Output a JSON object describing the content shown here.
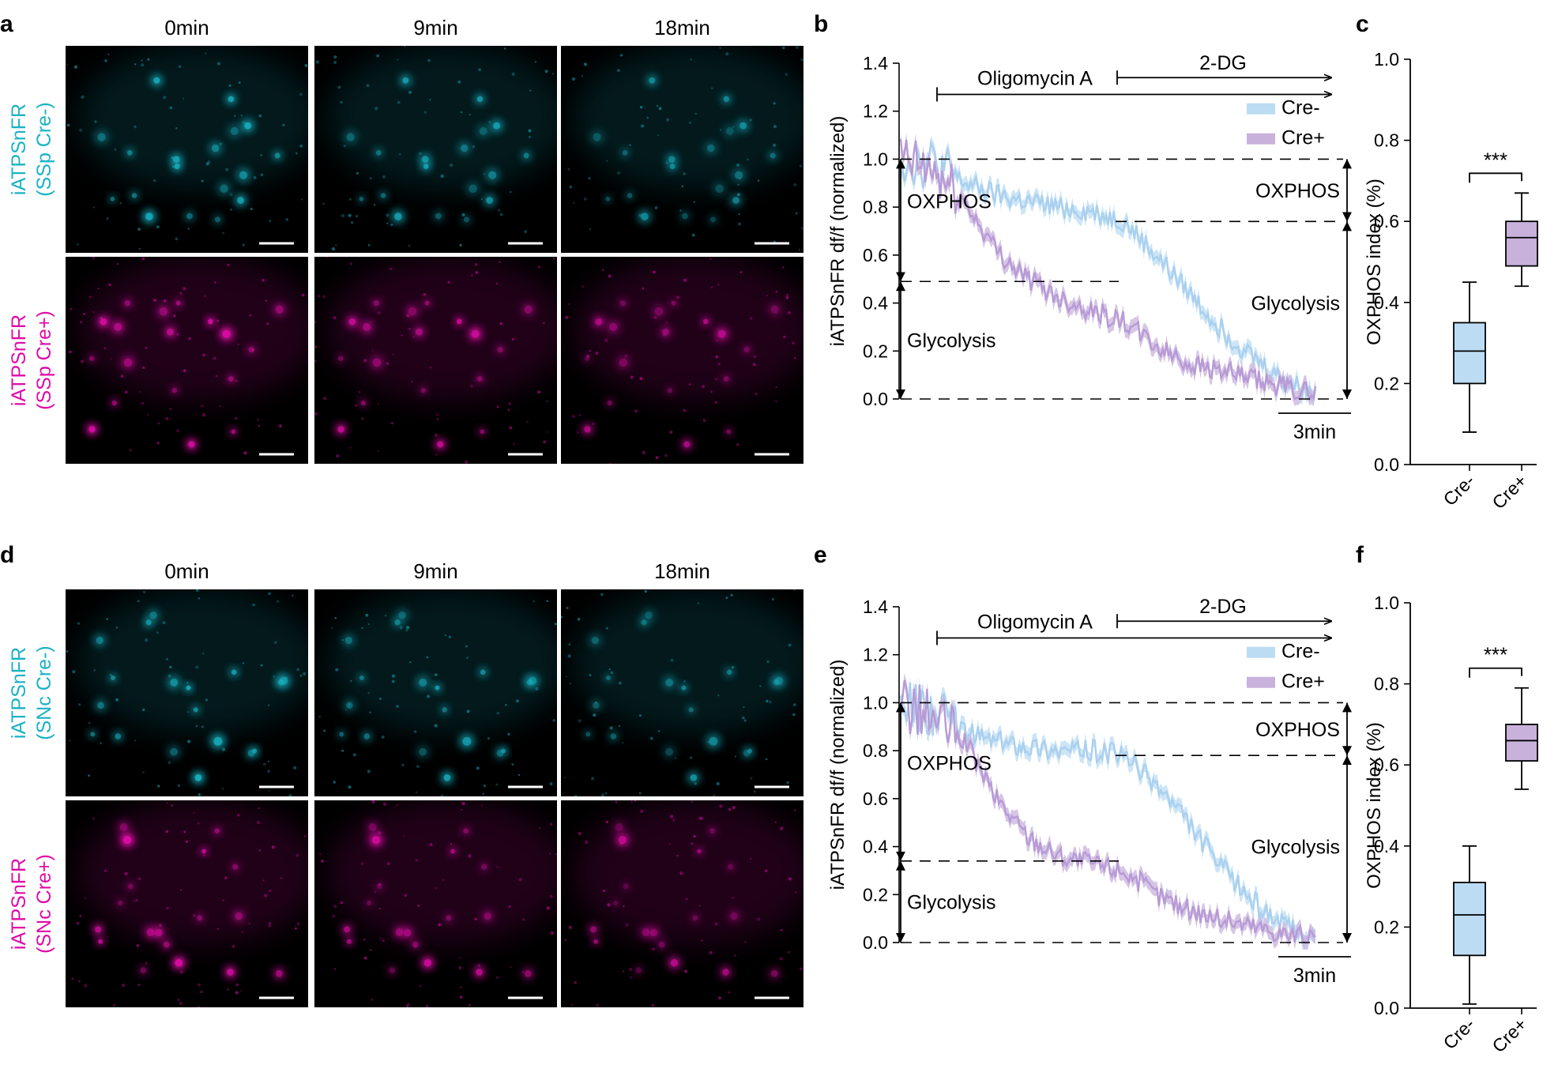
{
  "panels": {
    "a": "a",
    "b": "b",
    "c": "c",
    "d": "d",
    "e": "e",
    "f": "f"
  },
  "timepoints": [
    "0min",
    "9min",
    "18min"
  ],
  "row_labels": {
    "a_top": [
      "iATPSnFR",
      "(SSp Cre-)"
    ],
    "a_bottom": [
      "iATPSnFR",
      "(SSp Cre+)"
    ],
    "d_top": [
      "iATPSnFR",
      "(SNc Cre-)"
    ],
    "d_bottom": [
      "iATPSnFR",
      "(SNc Cre+)"
    ]
  },
  "colors": {
    "cyan": "#19b3c4",
    "magenta": "#e00aa8",
    "cre_minus": "#bcdcf3",
    "cre_plus": "#c8b2dc",
    "cre_minus_line": "#a9d0ef",
    "cre_plus_line": "#b79ad6"
  },
  "trace_panel": {
    "ylabel": "iATPSnFR df/f (normalized)",
    "yticks": [
      "0.0",
      "0.2",
      "0.4",
      "0.6",
      "0.8",
      "1.0",
      "1.2",
      "1.4"
    ],
    "drug_1": "Oligomycin A",
    "drug_2": "2-DG",
    "legend": [
      "Cre-",
      "Cre+"
    ],
    "oxphos_label": "OXPHOS",
    "glycolysis_label": "Glycolysis",
    "scale_bar": "3min"
  },
  "box_panel": {
    "ylabel": "OXPHOS index (%)",
    "yticks": [
      "0.0",
      "0.2",
      "0.4",
      "0.6",
      "0.8",
      "1.0"
    ],
    "categories": [
      "Cre-",
      "Cre+"
    ],
    "significance": "***"
  },
  "chart_data": [
    {
      "panel": "b",
      "type": "line",
      "title": "",
      "xlabel": "",
      "ylabel": "iATPSnFR df/f (normalized)",
      "ylim": [
        0,
        1.4
      ],
      "x_minutes": [
        0,
        1.5,
        3,
        4.5,
        6,
        7.5,
        9,
        10.5,
        12,
        13.5,
        15,
        16.5,
        18,
        19.5
      ],
      "series": [
        {
          "name": "Cre-",
          "values": [
            1.0,
            0.98,
            0.9,
            0.85,
            0.82,
            0.8,
            0.78,
            0.74,
            0.6,
            0.45,
            0.3,
            0.18,
            0.08,
            0.02
          ]
        },
        {
          "name": "Cre+",
          "values": [
            1.0,
            0.95,
            0.82,
            0.62,
            0.5,
            0.42,
            0.37,
            0.32,
            0.22,
            0.15,
            0.12,
            0.08,
            0.05,
            0.02
          ]
        }
      ],
      "reference_levels": {
        "Cre-": 0.74,
        "Cre+": 0.49
      },
      "annotations": [
        "Oligomycin A",
        "2-DG",
        "OXPHOS",
        "Glycolysis",
        "3min"
      ]
    },
    {
      "panel": "c",
      "type": "box",
      "ylabel": "OXPHOS index (%)",
      "ylim": [
        0,
        1.0
      ],
      "categories": [
        "Cre-",
        "Cre+"
      ],
      "boxes": [
        {
          "name": "Cre-",
          "min": 0.08,
          "q1": 0.2,
          "median": 0.28,
          "q3": 0.35,
          "max": 0.45
        },
        {
          "name": "Cre+",
          "min": 0.44,
          "q1": 0.49,
          "median": 0.56,
          "q3": 0.6,
          "max": 0.67
        }
      ],
      "significance": "***"
    },
    {
      "panel": "e",
      "type": "line",
      "title": "",
      "xlabel": "",
      "ylabel": "iATPSnFR df/f (normalized)",
      "ylim": [
        0,
        1.4
      ],
      "x_minutes": [
        0,
        1.5,
        3,
        4.5,
        6,
        7.5,
        9,
        10.5,
        12,
        13.5,
        15,
        16.5,
        18,
        19.5
      ],
      "series": [
        {
          "name": "Cre-",
          "values": [
            1.0,
            0.96,
            0.88,
            0.84,
            0.82,
            0.8,
            0.8,
            0.78,
            0.66,
            0.5,
            0.32,
            0.18,
            0.07,
            0.02
          ]
        },
        {
          "name": "Cre+",
          "values": [
            1.0,
            0.94,
            0.84,
            0.6,
            0.44,
            0.36,
            0.33,
            0.3,
            0.2,
            0.14,
            0.1,
            0.07,
            0.04,
            0.01
          ]
        }
      ],
      "reference_levels": {
        "Cre-": 0.78,
        "Cre+": 0.34
      },
      "annotations": [
        "Oligomycin A",
        "2-DG",
        "OXPHOS",
        "Glycolysis",
        "3min"
      ]
    },
    {
      "panel": "f",
      "type": "box",
      "ylabel": "OXPHOS index (%)",
      "ylim": [
        0,
        1.0
      ],
      "categories": [
        "Cre-",
        "Cre+"
      ],
      "boxes": [
        {
          "name": "Cre-",
          "min": 0.01,
          "q1": 0.13,
          "median": 0.23,
          "q3": 0.31,
          "max": 0.4
        },
        {
          "name": "Cre+",
          "min": 0.54,
          "q1": 0.61,
          "median": 0.66,
          "q3": 0.7,
          "max": 0.79
        }
      ],
      "significance": "***"
    }
  ]
}
